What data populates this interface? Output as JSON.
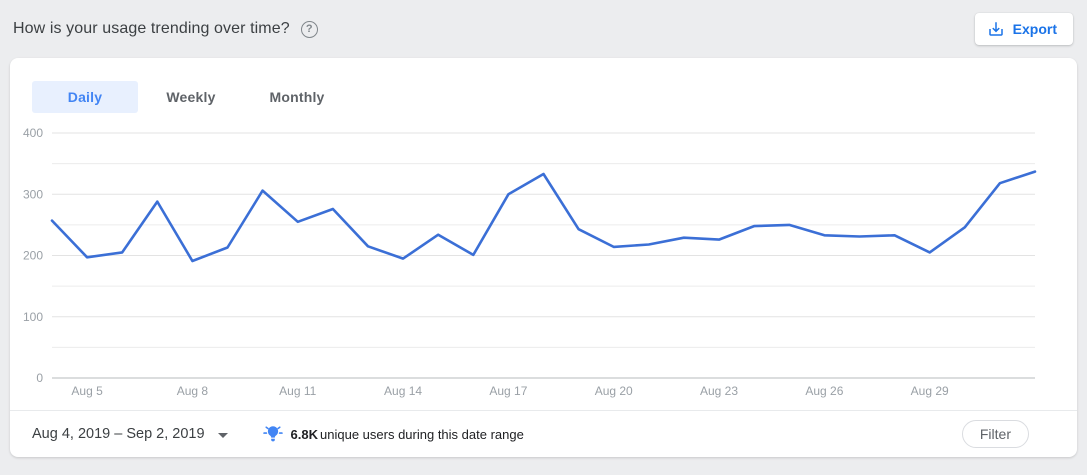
{
  "header": {
    "title": "How is your usage trending over time?",
    "help_icon": "question-mark-circle-icon",
    "export_label": "Export",
    "export_icon": "download-icon"
  },
  "tabs": [
    {
      "label": "Daily",
      "selected": true
    },
    {
      "label": "Weekly",
      "selected": false
    },
    {
      "label": "Monthly",
      "selected": false
    }
  ],
  "footer": {
    "date_range": "Aug 4, 2019 – Sep 2, 2019",
    "date_range_icon": "caret-down-icon",
    "insight_icon": "lightbulb-icon",
    "highlight_value": "6.8K",
    "highlight_text": "unique users during this date range",
    "filter_label": "Filter"
  },
  "colors": {
    "accent_blue": "#1a73e8",
    "tab_active_text": "#4285f4",
    "tab_active_bg": "#e8f0fe",
    "line": "#3b6fd6",
    "grid_minor": "#ececec",
    "grid_major": "#e3e3e3",
    "axis_zero_line": "#b7bbbe",
    "axis_label": "#9aa0a6",
    "page_bg": "#ecedef"
  },
  "chart_data": {
    "type": "line",
    "title": "How is your usage trending over time?",
    "xlabel": "",
    "ylabel": "",
    "x": [
      "Aug 4",
      "Aug 5",
      "Aug 6",
      "Aug 7",
      "Aug 8",
      "Aug 9",
      "Aug 10",
      "Aug 11",
      "Aug 12",
      "Aug 13",
      "Aug 14",
      "Aug 15",
      "Aug 16",
      "Aug 17",
      "Aug 18",
      "Aug 19",
      "Aug 20",
      "Aug 21",
      "Aug 22",
      "Aug 23",
      "Aug 24",
      "Aug 25",
      "Aug 26",
      "Aug 27",
      "Aug 28",
      "Aug 29",
      "Aug 30",
      "Aug 31",
      "Sep 1"
    ],
    "series": [
      {
        "name": "Daily",
        "values": [
          257,
          197,
          205,
          288,
          191,
          213,
          306,
          255,
          276,
          215,
          195,
          234,
          201,
          300,
          333,
          243,
          214,
          218,
          229,
          226,
          248,
          250,
          233,
          231,
          233,
          205,
          246,
          318,
          337
        ]
      }
    ],
    "x_tick_labels": [
      "Aug 5",
      "Aug 8",
      "Aug 11",
      "Aug 14",
      "Aug 17",
      "Aug 20",
      "Aug 23",
      "Aug 26",
      "Aug 29"
    ],
    "y_ticks": [
      0,
      100,
      200,
      300,
      400
    ],
    "y_minor_step": 50,
    "ylim": [
      0,
      400
    ],
    "grid": "horizontal",
    "legend": "none"
  }
}
